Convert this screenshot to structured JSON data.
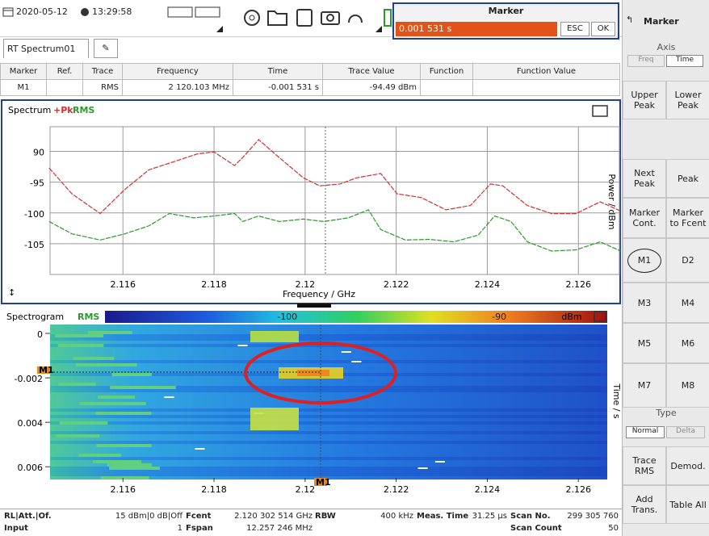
{
  "status_bar": {
    "date": "2020-05-12",
    "time": "13:29:58"
  },
  "marker_dialog": {
    "title": "Marker",
    "value": "0.001 531 s",
    "esc": "ESC",
    "ok": "OK"
  },
  "side_panel": {
    "title": "Marker",
    "axis_label": "Axis",
    "axis_options": [
      "Freq",
      "Time"
    ],
    "buttons": [
      [
        "Upper Peak",
        "Lower Peak"
      ],
      [
        "Next Peak",
        "Peak"
      ],
      [
        "Marker Cont.",
        "Marker to Fcent"
      ],
      [
        "M1",
        "D2"
      ],
      [
        "M3",
        "M4"
      ],
      [
        "M5",
        "M6"
      ],
      [
        "M7",
        "M8"
      ]
    ],
    "type_label": "Type",
    "type_options": [
      "Normal",
      "Delta"
    ],
    "bottom_buttons": [
      [
        "Trace RMS",
        "Demod."
      ],
      [
        "Add Trans.",
        "Table All"
      ]
    ]
  },
  "tab": {
    "name": "RT Spectrum01"
  },
  "marker_table": {
    "headers": [
      "Marker",
      "Ref.",
      "Trace",
      "Frequency",
      "Time",
      "Trace Value",
      "Function",
      "Function Value"
    ],
    "row": {
      "marker": "M1",
      "trace": "RMS",
      "frequency": "2 120.103 MHz",
      "time": "-0.001 531 s",
      "trace_value": "-94.49 dBm"
    }
  },
  "spectrum": {
    "title": "Spectrum",
    "trace_labels": [
      "+Pk",
      "RMS"
    ],
    "x_label": "Frequency / GHz",
    "y_label": "Power / dBm",
    "xlim": [
      2.1144,
      2.1269
    ],
    "ylim": [
      -110,
      -86
    ],
    "xticks": [
      2.116,
      2.118,
      2.12,
      2.122,
      2.124,
      2.126
    ],
    "yticks": [
      {
        "value": -90,
        "label": "90"
      },
      -95,
      -100,
      -105
    ],
    "series": [
      {
        "name": "+Pk",
        "color": "#d03030",
        "x": [
          2.11438,
          2.11488,
          2.1155,
          2.11604,
          2.11657,
          2.11711,
          2.11764,
          2.118,
          2.11845,
          2.11863,
          2.11898,
          2.11943,
          2.11996,
          2.12032,
          2.12077,
          2.12113,
          2.12166,
          2.12202,
          2.12255,
          2.12309,
          2.12363,
          2.12407,
          2.12434,
          2.12488,
          2.12541,
          2.12595,
          2.12648,
          2.12693
        ],
        "values": [
          -92.7,
          -96.9,
          -100.1,
          -96.2,
          -93.0,
          -91.7,
          -90.4,
          -90.1,
          -92.3,
          -91.0,
          -88.1,
          -91.0,
          -94.3,
          -95.6,
          -95.3,
          -94.3,
          -93.6,
          -96.9,
          -97.5,
          -99.5,
          -98.8,
          -95.3,
          -95.6,
          -98.8,
          -100.1,
          -100.1,
          -98.2,
          -99.7
        ]
      },
      {
        "name": "RMS",
        "color": "#2a9a2a",
        "x": [
          2.11438,
          2.11488,
          2.1155,
          2.11604,
          2.11657,
          2.11702,
          2.11755,
          2.118,
          2.11845,
          2.11863,
          2.11898,
          2.11943,
          2.11996,
          2.12041,
          2.12095,
          2.12139,
          2.12166,
          2.1222,
          2.12273,
          2.12327,
          2.1238,
          2.12416,
          2.12452,
          2.12488,
          2.12541,
          2.12595,
          2.12648,
          2.12693
        ],
        "values": [
          -101.4,
          -103.4,
          -104.4,
          -103.4,
          -102.1,
          -100.1,
          -100.8,
          -100.5,
          -100.1,
          -101.4,
          -100.5,
          -101.4,
          -101.0,
          -101.4,
          -100.8,
          -99.5,
          -102.7,
          -104.4,
          -104.3,
          -104.7,
          -103.6,
          -100.5,
          -101.4,
          -104.7,
          -106.2,
          -106.0,
          -104.7,
          -106.2
        ]
      }
    ]
  },
  "spectrogram": {
    "title": "Spectrogram",
    "trace": "RMS",
    "colorbar_lim": [
      -108.6,
      -84.9
    ],
    "colorbar_ticks": [
      -100,
      -90
    ],
    "colorbar_unit": "dBm",
    "y_label": "Time / s",
    "marker_label": "M1",
    "xlim": [
      2.1144,
      2.1269
    ],
    "xticks": [
      2.116,
      2.118,
      2.12,
      2.122,
      2.124,
      2.126
    ],
    "ylim": [
      0.0004,
      -0.0065
    ],
    "yticks": [
      0,
      -0.002,
      {
        "value": -0.004,
        "label": "0.004"
      },
      {
        "value": -0.006,
        "label": "0.006"
      }
    ]
  },
  "bottom_bar": [
    {
      "top_label": "RL|Att.|Of.",
      "top_value": "15 dBm|0 dB|Off",
      "bottom_label": "Input",
      "bottom_value": "1"
    },
    {
      "top_label": "Fcent",
      "top_value": "2.120 302 514 GHz",
      "bottom_label": "Fspan",
      "bottom_value": "12.257 246 MHz"
    },
    {
      "top_label": "RBW",
      "top_value": "400 kHz"
    },
    {
      "top_label": "Meas. Time",
      "top_value": "31.25 µs"
    },
    {
      "top_label": "Scan No.",
      "top_value": "299 305 760",
      "bottom_label": "Scan Count",
      "bottom_value": "50"
    }
  ]
}
